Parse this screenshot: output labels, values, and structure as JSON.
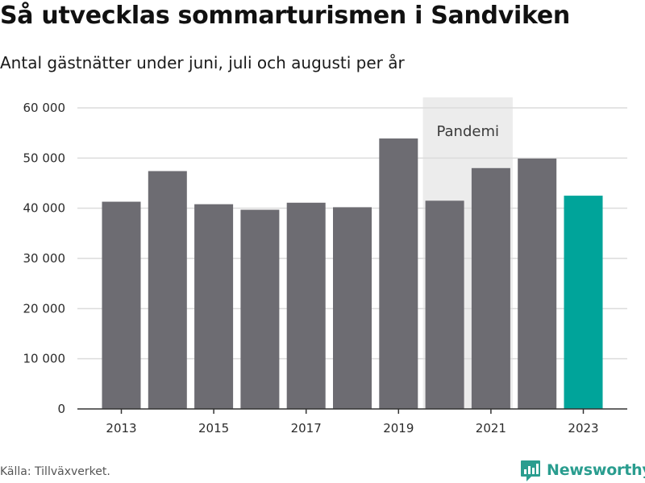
{
  "title": "Så utvecklas sommarturismen i Sandviken",
  "subtitle": "Antal gästnätter under juni, juli och augusti per år",
  "source": "Källa: Tillväxverket.",
  "brand": "Newsworthy",
  "colors": {
    "bar": "#6d6c72",
    "highlight": "#00a49a",
    "shade": "#ececec",
    "grid": "#dcdcdc",
    "axis": "#333333",
    "brand": "#2a9d8f"
  },
  "chart_data": {
    "type": "bar",
    "categories": [
      "2013",
      "2014",
      "2015",
      "2016",
      "2017",
      "2018",
      "2019",
      "2020",
      "2021",
      "2022",
      "2023"
    ],
    "values": [
      41300,
      47400,
      40800,
      39700,
      41100,
      40200,
      53900,
      41500,
      48000,
      49900,
      42500
    ],
    "highlight_index": 10,
    "xticks": [
      "2013",
      "2015",
      "2017",
      "2019",
      "2021",
      "2023"
    ],
    "yticks": [
      0,
      10000,
      20000,
      30000,
      40000,
      50000,
      60000
    ],
    "ytick_labels": [
      "0",
      "10 000",
      "20 000",
      "30 000",
      "40 000",
      "50 000",
      "60 000"
    ],
    "ylim": [
      0,
      62000
    ],
    "grid": true,
    "annotation": {
      "label": "Pandemi",
      "from": "2020",
      "to": "2021"
    }
  }
}
